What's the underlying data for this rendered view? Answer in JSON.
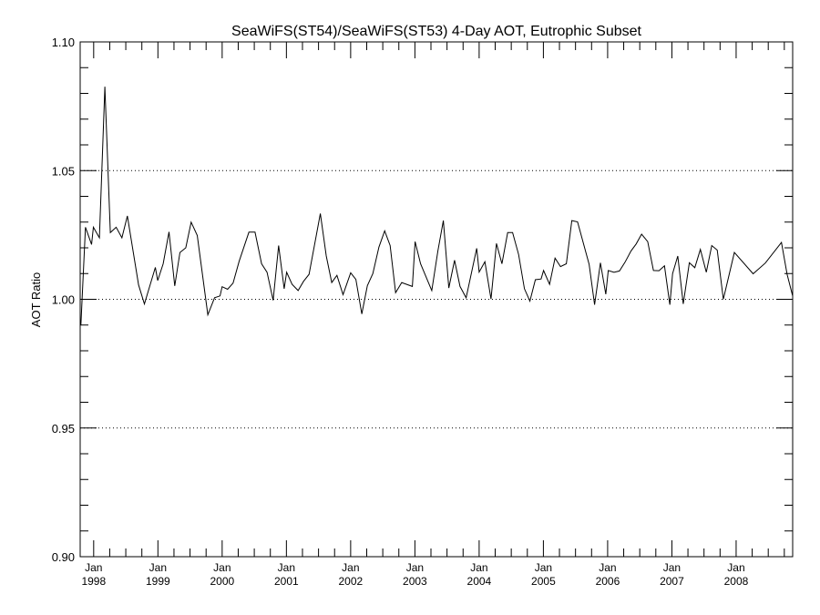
{
  "chart_data": {
    "type": "line",
    "title": "SeaWiFS(ST54)/SeaWiFS(ST53) 4-Day AOT, Eutrophic Subset",
    "xlabel": "",
    "ylabel": "AOT Ratio",
    "xlim": [
      1997.79,
      2008.88
    ],
    "ylim": [
      0.9,
      1.1
    ],
    "yticks": [
      {
        "value": 0.9,
        "label": "0.90"
      },
      {
        "value": 0.95,
        "label": "0.95"
      },
      {
        "value": 1.0,
        "label": "1.00"
      },
      {
        "value": 1.05,
        "label": "1.05"
      },
      {
        "value": 1.1,
        "label": "1.10"
      }
    ],
    "y_minor_step": 0.01,
    "gridlines_y": [
      0.95,
      1.0,
      1.05
    ],
    "xticks": [
      {
        "value": 1998,
        "month": "Jan",
        "year": "1998"
      },
      {
        "value": 1999,
        "month": "Jan",
        "year": "1999"
      },
      {
        "value": 2000,
        "month": "Jan",
        "year": "2000"
      },
      {
        "value": 2001,
        "month": "Jan",
        "year": "2001"
      },
      {
        "value": 2002,
        "month": "Jan",
        "year": "2002"
      },
      {
        "value": 2003,
        "month": "Jan",
        "year": "2003"
      },
      {
        "value": 2004,
        "month": "Jan",
        "year": "2004"
      },
      {
        "value": 2005,
        "month": "Jan",
        "year": "2005"
      },
      {
        "value": 2006,
        "month": "Jan",
        "year": "2006"
      },
      {
        "value": 2007,
        "month": "Jan",
        "year": "2007"
      },
      {
        "value": 2008,
        "month": "Jan",
        "year": "2008"
      }
    ],
    "series": [
      {
        "name": "AOT Ratio",
        "x": [
          1997.801,
          1997.872,
          1997.967,
          1997.996,
          1998.089,
          1998.174,
          1998.26,
          1998.35,
          1998.44,
          1998.525,
          1998.699,
          1998.79,
          1998.96,
          1998.997,
          1999.082,
          1999.173,
          1999.262,
          1999.343,
          1999.433,
          1999.518,
          1999.613,
          1999.777,
          1999.882,
          1999.967,
          2000.0,
          2000.085,
          2000.17,
          2000.265,
          2000.416,
          2000.511,
          2000.614,
          2000.699,
          2000.794,
          2000.879,
          2000.965,
          2001.003,
          2001.088,
          2001.182,
          2001.267,
          2001.352,
          2001.528,
          2001.621,
          2001.706,
          2001.787,
          2001.882,
          2002.0,
          2002.081,
          2002.174,
          2002.26,
          2002.345,
          2002.44,
          2002.529,
          2002.614,
          2002.699,
          2002.794,
          2002.96,
          2003.003,
          2003.088,
          2003.262,
          2003.357,
          2003.443,
          2003.528,
          2003.617,
          2003.702,
          2003.797,
          2003.962,
          2004.0,
          2004.089,
          2004.184,
          2004.27,
          2004.355,
          2004.444,
          2004.521,
          2004.614,
          2004.705,
          2004.79,
          2004.875,
          2004.965,
          2005.003,
          2005.096,
          2005.182,
          2005.267,
          2005.357,
          2005.443,
          2005.532,
          2005.712,
          2005.797,
          2005.887,
          2005.972,
          2006.01,
          2006.099,
          2006.184,
          2006.27,
          2006.364,
          2006.444,
          2006.529,
          2006.624,
          2006.713,
          2006.799,
          2006.884,
          2006.969,
          2007.011,
          2007.092,
          2007.177,
          2007.272,
          2007.357,
          2007.443,
          2007.536,
          2007.621,
          2007.706,
          2007.801,
          2007.972,
          2008.265,
          2008.454,
          2008.705,
          2008.794,
          2008.879
        ],
        "y": [
          0.9901,
          1.028,
          1.0213,
          1.028,
          1.0239,
          1.0826,
          1.0259,
          1.028,
          1.0239,
          1.0324,
          1.0056,
          0.9982,
          1.0124,
          1.0073,
          1.0138,
          1.0262,
          1.0052,
          1.0182,
          1.02,
          1.03,
          1.0248,
          0.994,
          1.0006,
          1.0013,
          1.0049,
          1.0039,
          1.0063,
          1.0148,
          1.0261,
          1.0261,
          1.0138,
          1.0105,
          0.9996,
          1.0209,
          1.0041,
          1.0105,
          1.0058,
          1.0034,
          1.007,
          1.0097,
          1.0333,
          1.0168,
          1.0065,
          1.0093,
          1.0018,
          1.0103,
          1.0077,
          0.9943,
          1.0053,
          1.01,
          1.0203,
          1.0266,
          1.0209,
          1.0026,
          1.0065,
          1.005,
          1.0224,
          1.0138,
          1.0034,
          1.0188,
          1.0306,
          1.0044,
          1.0152,
          1.005,
          1.0006,
          1.0198,
          1.0106,
          1.0146,
          1.0001,
          1.0217,
          1.0138,
          1.0259,
          1.0259,
          1.0174,
          1.0041,
          0.9993,
          1.0076,
          1.0079,
          1.0112,
          1.0058,
          1.016,
          1.0127,
          1.0138,
          1.0306,
          1.0301,
          1.0136,
          0.9979,
          1.0142,
          1.002,
          1.0112,
          1.0105,
          1.011,
          1.0144,
          1.0188,
          1.0215,
          1.0253,
          1.0224,
          1.0112,
          1.0111,
          1.013,
          0.9979,
          1.01,
          1.0168,
          0.9982,
          1.0142,
          1.0123,
          1.0194,
          1.0105,
          1.0209,
          1.0191,
          1.0,
          1.0182,
          1.0099,
          1.0141,
          1.0221,
          1.0097,
          1.0014
        ],
        "color": "#000000"
      }
    ],
    "grid": "dotted horizontal at 0.95, 1.00, 1.05",
    "legend": "none"
  }
}
